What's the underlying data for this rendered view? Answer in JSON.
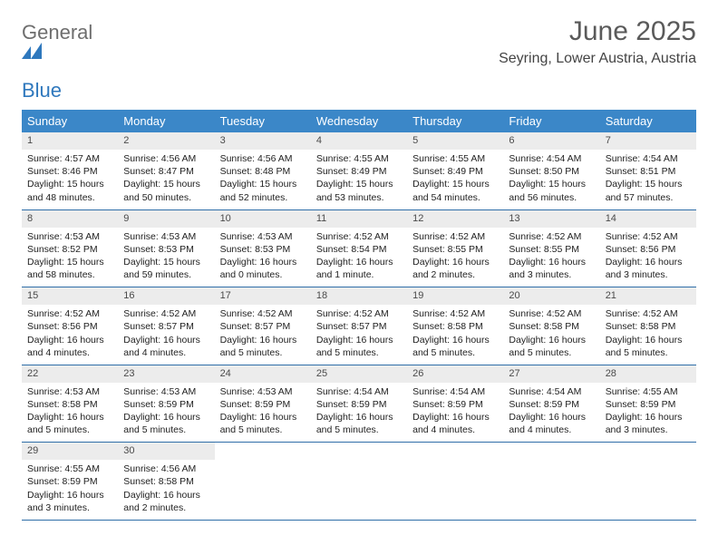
{
  "logo": {
    "line1": "General",
    "line2": "Blue",
    "mark_color": "#2f78bd"
  },
  "header": {
    "month_title": "June 2025",
    "location": "Seyring, Lower Austria, Austria"
  },
  "colors": {
    "header_bg": "#3b87c8",
    "week_border": "#2f6ea8",
    "daynum_bg": "#ececec"
  },
  "weekdays": [
    "Sunday",
    "Monday",
    "Tuesday",
    "Wednesday",
    "Thursday",
    "Friday",
    "Saturday"
  ],
  "weeks": [
    [
      {
        "num": "1",
        "sunrise": "Sunrise: 4:57 AM",
        "sunset": "Sunset: 8:46 PM",
        "daylight": "Daylight: 15 hours and 48 minutes."
      },
      {
        "num": "2",
        "sunrise": "Sunrise: 4:56 AM",
        "sunset": "Sunset: 8:47 PM",
        "daylight": "Daylight: 15 hours and 50 minutes."
      },
      {
        "num": "3",
        "sunrise": "Sunrise: 4:56 AM",
        "sunset": "Sunset: 8:48 PM",
        "daylight": "Daylight: 15 hours and 52 minutes."
      },
      {
        "num": "4",
        "sunrise": "Sunrise: 4:55 AM",
        "sunset": "Sunset: 8:49 PM",
        "daylight": "Daylight: 15 hours and 53 minutes."
      },
      {
        "num": "5",
        "sunrise": "Sunrise: 4:55 AM",
        "sunset": "Sunset: 8:49 PM",
        "daylight": "Daylight: 15 hours and 54 minutes."
      },
      {
        "num": "6",
        "sunrise": "Sunrise: 4:54 AM",
        "sunset": "Sunset: 8:50 PM",
        "daylight": "Daylight: 15 hours and 56 minutes."
      },
      {
        "num": "7",
        "sunrise": "Sunrise: 4:54 AM",
        "sunset": "Sunset: 8:51 PM",
        "daylight": "Daylight: 15 hours and 57 minutes."
      }
    ],
    [
      {
        "num": "8",
        "sunrise": "Sunrise: 4:53 AM",
        "sunset": "Sunset: 8:52 PM",
        "daylight": "Daylight: 15 hours and 58 minutes."
      },
      {
        "num": "9",
        "sunrise": "Sunrise: 4:53 AM",
        "sunset": "Sunset: 8:53 PM",
        "daylight": "Daylight: 15 hours and 59 minutes."
      },
      {
        "num": "10",
        "sunrise": "Sunrise: 4:53 AM",
        "sunset": "Sunset: 8:53 PM",
        "daylight": "Daylight: 16 hours and 0 minutes."
      },
      {
        "num": "11",
        "sunrise": "Sunrise: 4:52 AM",
        "sunset": "Sunset: 8:54 PM",
        "daylight": "Daylight: 16 hours and 1 minute."
      },
      {
        "num": "12",
        "sunrise": "Sunrise: 4:52 AM",
        "sunset": "Sunset: 8:55 PM",
        "daylight": "Daylight: 16 hours and 2 minutes."
      },
      {
        "num": "13",
        "sunrise": "Sunrise: 4:52 AM",
        "sunset": "Sunset: 8:55 PM",
        "daylight": "Daylight: 16 hours and 3 minutes."
      },
      {
        "num": "14",
        "sunrise": "Sunrise: 4:52 AM",
        "sunset": "Sunset: 8:56 PM",
        "daylight": "Daylight: 16 hours and 3 minutes."
      }
    ],
    [
      {
        "num": "15",
        "sunrise": "Sunrise: 4:52 AM",
        "sunset": "Sunset: 8:56 PM",
        "daylight": "Daylight: 16 hours and 4 minutes."
      },
      {
        "num": "16",
        "sunrise": "Sunrise: 4:52 AM",
        "sunset": "Sunset: 8:57 PM",
        "daylight": "Daylight: 16 hours and 4 minutes."
      },
      {
        "num": "17",
        "sunrise": "Sunrise: 4:52 AM",
        "sunset": "Sunset: 8:57 PM",
        "daylight": "Daylight: 16 hours and 5 minutes."
      },
      {
        "num": "18",
        "sunrise": "Sunrise: 4:52 AM",
        "sunset": "Sunset: 8:57 PM",
        "daylight": "Daylight: 16 hours and 5 minutes."
      },
      {
        "num": "19",
        "sunrise": "Sunrise: 4:52 AM",
        "sunset": "Sunset: 8:58 PM",
        "daylight": "Daylight: 16 hours and 5 minutes."
      },
      {
        "num": "20",
        "sunrise": "Sunrise: 4:52 AM",
        "sunset": "Sunset: 8:58 PM",
        "daylight": "Daylight: 16 hours and 5 minutes."
      },
      {
        "num": "21",
        "sunrise": "Sunrise: 4:52 AM",
        "sunset": "Sunset: 8:58 PM",
        "daylight": "Daylight: 16 hours and 5 minutes."
      }
    ],
    [
      {
        "num": "22",
        "sunrise": "Sunrise: 4:53 AM",
        "sunset": "Sunset: 8:58 PM",
        "daylight": "Daylight: 16 hours and 5 minutes."
      },
      {
        "num": "23",
        "sunrise": "Sunrise: 4:53 AM",
        "sunset": "Sunset: 8:59 PM",
        "daylight": "Daylight: 16 hours and 5 minutes."
      },
      {
        "num": "24",
        "sunrise": "Sunrise: 4:53 AM",
        "sunset": "Sunset: 8:59 PM",
        "daylight": "Daylight: 16 hours and 5 minutes."
      },
      {
        "num": "25",
        "sunrise": "Sunrise: 4:54 AM",
        "sunset": "Sunset: 8:59 PM",
        "daylight": "Daylight: 16 hours and 5 minutes."
      },
      {
        "num": "26",
        "sunrise": "Sunrise: 4:54 AM",
        "sunset": "Sunset: 8:59 PM",
        "daylight": "Daylight: 16 hours and 4 minutes."
      },
      {
        "num": "27",
        "sunrise": "Sunrise: 4:54 AM",
        "sunset": "Sunset: 8:59 PM",
        "daylight": "Daylight: 16 hours and 4 minutes."
      },
      {
        "num": "28",
        "sunrise": "Sunrise: 4:55 AM",
        "sunset": "Sunset: 8:59 PM",
        "daylight": "Daylight: 16 hours and 3 minutes."
      }
    ],
    [
      {
        "num": "29",
        "sunrise": "Sunrise: 4:55 AM",
        "sunset": "Sunset: 8:59 PM",
        "daylight": "Daylight: 16 hours and 3 minutes."
      },
      {
        "num": "30",
        "sunrise": "Sunrise: 4:56 AM",
        "sunset": "Sunset: 8:58 PM",
        "daylight": "Daylight: 16 hours and 2 minutes."
      },
      {
        "empty": true
      },
      {
        "empty": true
      },
      {
        "empty": true
      },
      {
        "empty": true
      },
      {
        "empty": true
      }
    ]
  ]
}
